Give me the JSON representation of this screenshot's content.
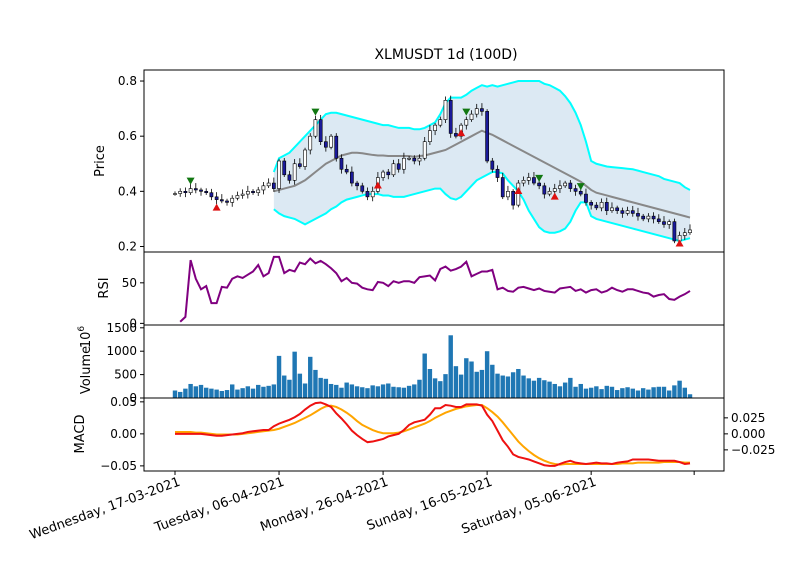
{
  "chart_data": {
    "type": "candlestick",
    "title": "XLMUSDT 1d (100D)",
    "x_tick_labels": [
      "Wednesday, 17-03-2021",
      "Tuesday, 06-04-2021",
      "Monday, 26-04-2021",
      "Sunday, 16-05-2021",
      "Saturday, 05-06-2021"
    ],
    "x_tick_index": [
      0,
      20,
      40,
      60,
      80
    ],
    "n_bars": 100,
    "price": {
      "ylabel": "Price",
      "ylim": [
        0.18,
        0.84
      ],
      "yticks": [
        "0.2",
        "0.4",
        "0.6",
        "0.8"
      ],
      "ytick_values": [
        0.2,
        0.4,
        0.6,
        0.8
      ],
      "close": [
        0.392,
        0.4,
        0.395,
        0.41,
        0.405,
        0.4,
        0.395,
        0.38,
        0.37,
        0.365,
        0.36,
        0.375,
        0.385,
        0.39,
        0.4,
        0.395,
        0.405,
        0.42,
        0.43,
        0.41,
        0.51,
        0.46,
        0.44,
        0.5,
        0.49,
        0.55,
        0.6,
        0.66,
        0.58,
        0.56,
        0.6,
        0.52,
        0.48,
        0.47,
        0.43,
        0.42,
        0.4,
        0.38,
        0.4,
        0.45,
        0.47,
        0.46,
        0.5,
        0.48,
        0.52,
        0.52,
        0.51,
        0.52,
        0.58,
        0.62,
        0.64,
        0.66,
        0.73,
        0.61,
        0.6,
        0.64,
        0.66,
        0.68,
        0.7,
        0.69,
        0.51,
        0.48,
        0.45,
        0.38,
        0.4,
        0.35,
        0.43,
        0.44,
        0.45,
        0.43,
        0.42,
        0.39,
        0.4,
        0.41,
        0.42,
        0.43,
        0.41,
        0.4,
        0.39,
        0.36,
        0.35,
        0.34,
        0.36,
        0.33,
        0.34,
        0.33,
        0.32,
        0.33,
        0.32,
        0.31,
        0.3,
        0.31,
        0.3,
        0.29,
        0.28,
        0.29,
        0.22,
        0.24,
        0.25,
        0.26
      ],
      "sma": [
        null,
        null,
        null,
        null,
        null,
        null,
        null,
        null,
        null,
        null,
        null,
        null,
        null,
        null,
        null,
        null,
        null,
        null,
        null,
        0.4,
        0.405,
        0.41,
        0.415,
        0.42,
        0.43,
        0.44,
        0.455,
        0.47,
        0.485,
        0.5,
        0.51,
        0.52,
        0.53,
        0.535,
        0.54,
        0.54,
        0.538,
        0.535,
        0.532,
        0.53,
        0.53,
        0.528,
        0.528,
        0.528,
        0.528,
        0.528,
        0.525,
        0.528,
        0.53,
        0.535,
        0.54,
        0.545,
        0.55,
        0.56,
        0.57,
        0.58,
        0.59,
        0.6,
        0.61,
        0.62,
        0.612,
        0.605,
        0.595,
        0.585,
        0.575,
        0.565,
        0.555,
        0.545,
        0.535,
        0.525,
        0.515,
        0.505,
        0.495,
        0.485,
        0.475,
        0.465,
        0.455,
        0.445,
        0.435,
        0.42,
        0.405,
        0.395,
        0.39,
        0.385,
        0.38,
        0.375,
        0.37,
        0.365,
        0.36,
        0.355,
        0.35,
        0.345,
        0.34,
        0.335,
        0.33,
        0.325,
        0.32,
        0.315,
        0.31,
        0.305
      ],
      "upper_band": [
        null,
        null,
        null,
        null,
        null,
        null,
        null,
        null,
        null,
        null,
        null,
        null,
        null,
        null,
        null,
        null,
        null,
        null,
        null,
        0.47,
        0.52,
        0.53,
        0.54,
        0.56,
        0.58,
        0.6,
        0.62,
        0.64,
        0.66,
        0.68,
        0.685,
        0.685,
        0.68,
        0.675,
        0.67,
        0.665,
        0.66,
        0.655,
        0.65,
        0.645,
        0.64,
        0.64,
        0.635,
        0.63,
        0.63,
        0.63,
        0.625,
        0.625,
        0.63,
        0.64,
        0.65,
        0.68,
        0.72,
        0.74,
        0.74,
        0.74,
        0.75,
        0.765,
        0.775,
        0.785,
        0.78,
        0.785,
        0.78,
        0.785,
        0.79,
        0.795,
        0.8,
        0.8,
        0.8,
        0.8,
        0.8,
        0.79,
        0.785,
        0.775,
        0.765,
        0.745,
        0.72,
        0.685,
        0.64,
        0.58,
        0.51,
        0.5,
        0.495,
        0.49,
        0.488,
        0.486,
        0.484,
        0.482,
        0.48,
        0.475,
        0.47,
        0.465,
        0.46,
        0.455,
        0.445,
        0.44,
        0.435,
        0.43,
        0.415,
        0.405
      ],
      "lower_band": [
        null,
        null,
        null,
        null,
        null,
        null,
        null,
        null,
        null,
        null,
        null,
        null,
        null,
        null,
        null,
        null,
        null,
        null,
        null,
        0.335,
        0.32,
        0.31,
        0.305,
        0.3,
        0.29,
        0.28,
        0.29,
        0.3,
        0.31,
        0.32,
        0.335,
        0.345,
        0.36,
        0.37,
        0.375,
        0.38,
        0.385,
        0.39,
        0.39,
        0.39,
        0.385,
        0.385,
        0.38,
        0.38,
        0.38,
        0.385,
        0.39,
        0.395,
        0.4,
        0.405,
        0.41,
        0.41,
        0.39,
        0.375,
        0.37,
        0.38,
        0.4,
        0.42,
        0.44,
        0.45,
        0.46,
        0.47,
        0.47,
        0.465,
        0.44,
        0.42,
        0.4,
        0.37,
        0.33,
        0.3,
        0.27,
        0.255,
        0.25,
        0.25,
        0.255,
        0.265,
        0.29,
        0.33,
        0.36,
        0.36,
        0.31,
        0.3,
        0.295,
        0.29,
        0.285,
        0.28,
        0.275,
        0.27,
        0.265,
        0.26,
        0.255,
        0.25,
        0.245,
        0.24,
        0.235,
        0.23,
        0.225,
        0.22,
        0.225,
        0.23
      ],
      "buy_markers_index": [
        8,
        39,
        55,
        66,
        73,
        97
      ],
      "sell_markers_index": [
        3,
        27,
        56,
        70,
        78
      ]
    },
    "rsi": {
      "ylabel": "RSI",
      "ylim": [
        -2,
        88
      ],
      "yticks": [
        "0",
        "50"
      ],
      "ytick_values": [
        0,
        50
      ],
      "values": [
        null,
        2,
        8,
        78,
        55,
        42,
        46,
        25,
        25,
        45,
        44,
        55,
        58,
        56,
        60,
        64,
        72,
        58,
        62,
        82,
        82,
        62,
        66,
        64,
        75,
        73,
        80,
        74,
        77,
        73,
        68,
        62,
        52,
        56,
        50,
        49,
        44,
        42,
        41,
        51,
        50,
        46,
        52,
        50,
        52,
        52,
        50,
        57,
        58,
        59,
        53,
        67,
        70,
        65,
        67,
        70,
        76,
        58,
        61,
        64,
        64,
        66,
        42,
        44,
        40,
        39,
        44,
        45,
        43,
        41,
        43,
        40,
        39,
        38,
        43,
        44,
        45,
        40,
        42,
        38,
        41,
        42,
        38,
        40,
        44,
        41,
        39,
        42,
        42,
        40,
        38,
        37,
        33,
        35,
        36,
        30,
        29,
        33,
        36,
        40
      ]
    },
    "volume": {
      "ylabel": "Volume",
      "exponent_label": "1e6",
      "ylim": [
        0,
        1560
      ],
      "yticks": [
        "0",
        "500",
        "1000",
        "1500"
      ],
      "ytick_values": [
        0,
        500,
        1000,
        1500
      ],
      "values": [
        160,
        130,
        200,
        300,
        250,
        280,
        220,
        200,
        180,
        150,
        170,
        290,
        180,
        210,
        250,
        200,
        280,
        240,
        260,
        290,
        900,
        480,
        390,
        990,
        520,
        310,
        880,
        600,
        430,
        410,
        300,
        280,
        220,
        330,
        290,
        250,
        230,
        210,
        270,
        250,
        290,
        310,
        240,
        230,
        220,
        260,
        290,
        390,
        950,
        620,
        420,
        360,
        510,
        1340,
        680,
        500,
        850,
        780,
        560,
        600,
        1000,
        710,
        520,
        480,
        460,
        550,
        620,
        480,
        420,
        370,
        430,
        380,
        350,
        300,
        250,
        330,
        430,
        240,
        300,
        200,
        220,
        250,
        190,
        260,
        240,
        170,
        210,
        230,
        200,
        160,
        210,
        180,
        230,
        240,
        240,
        160,
        270,
        370,
        220,
        80
      ]
    },
    "macd": {
      "ylabel": "MACD",
      "ylim": [
        -0.058,
        0.056
      ],
      "yticks_left": [
        "−0.05",
        "0.00",
        "0.05"
      ],
      "ytick_values_left": [
        -0.05,
        0,
        0.05
      ],
      "yticks_right": [
        "−0.025",
        "0.000",
        "0.025"
      ],
      "ytick_values_right": [
        -0.025,
        0,
        0.025
      ],
      "macd_line": [
        0,
        0,
        0,
        0,
        0,
        0,
        -0.001,
        -0.002,
        -0.003,
        -0.003,
        -0.002,
        -0.001,
        0,
        0.001,
        0.003,
        0.004,
        0.005,
        0.006,
        0.006,
        0.012,
        0.016,
        0.019,
        0.022,
        0.026,
        0.031,
        0.038,
        0.044,
        0.048,
        0.049,
        0.046,
        0.042,
        0.032,
        0.024,
        0.015,
        0.005,
        -0.002,
        -0.008,
        -0.013,
        -0.012,
        -0.01,
        -0.008,
        -0.004,
        -0.002,
        0,
        0.006,
        0.014,
        0.018,
        0.02,
        0.022,
        0.03,
        0.04,
        0.04,
        0.045,
        0.044,
        0.042,
        0.042,
        0.046,
        0.046,
        0.046,
        0.044,
        0.03,
        0.02,
        0.005,
        -0.01,
        -0.02,
        -0.032,
        -0.036,
        -0.038,
        -0.04,
        -0.043,
        -0.046,
        -0.049,
        -0.05,
        -0.05,
        -0.047,
        -0.044,
        -0.042,
        -0.045,
        -0.046,
        -0.047,
        -0.046,
        -0.045,
        -0.046,
        -0.046,
        -0.047,
        -0.045,
        -0.044,
        -0.043,
        -0.04,
        -0.04,
        -0.04,
        -0.04,
        -0.041,
        -0.042,
        -0.042,
        -0.042,
        -0.042,
        -0.044,
        -0.047,
        -0.046
      ],
      "signal_line": [
        0.003,
        0.003,
        0.003,
        0.003,
        0.002,
        0.002,
        0.001,
        0,
        -0.001,
        -0.001,
        -0.001,
        -0.001,
        -0.001,
        0,
        0.001,
        0.002,
        0.003,
        0.004,
        0.005,
        0.006,
        0.008,
        0.011,
        0.014,
        0.017,
        0.021,
        0.025,
        0.029,
        0.034,
        0.039,
        0.043,
        0.044,
        0.042,
        0.038,
        0.033,
        0.027,
        0.02,
        0.014,
        0.01,
        0.006,
        0.003,
        0.001,
        0.001,
        0.001,
        0.002,
        0.004,
        0.007,
        0.01,
        0.013,
        0.016,
        0.02,
        0.025,
        0.029,
        0.033,
        0.036,
        0.039,
        0.041,
        0.043,
        0.044,
        0.045,
        0.045,
        0.04,
        0.034,
        0.027,
        0.018,
        0.008,
        -0.002,
        -0.012,
        -0.02,
        -0.027,
        -0.033,
        -0.038,
        -0.042,
        -0.045,
        -0.047,
        -0.048,
        -0.047,
        -0.047,
        -0.047,
        -0.047,
        -0.047,
        -0.047,
        -0.047,
        -0.047,
        -0.047,
        -0.047,
        -0.047,
        -0.046,
        -0.046,
        -0.046,
        -0.045,
        -0.045,
        -0.045,
        -0.045,
        -0.045,
        -0.044,
        -0.044,
        -0.044,
        -0.044,
        -0.045,
        -0.045
      ]
    },
    "colors": {
      "up_candle": "#ffffff",
      "down_candle": "#1a1a9a",
      "sma": "#888888",
      "bands": "#00ffff",
      "band_fill": "#dce9f3",
      "rsi": "#800080",
      "volume": "#1f77b4",
      "macd": "#ee1111",
      "signal": "#ffa500",
      "buy_marker": "#dd1111",
      "sell_marker": "#117711"
    }
  }
}
